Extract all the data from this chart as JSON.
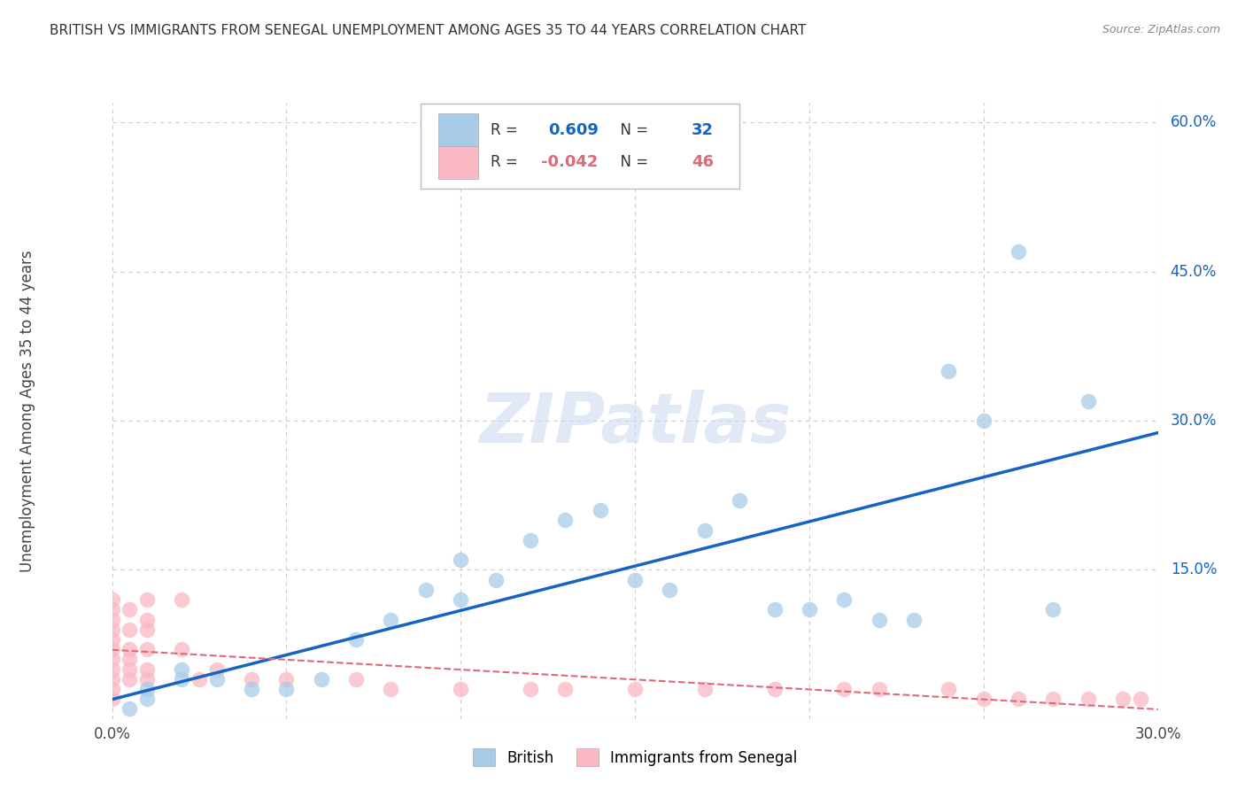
{
  "title": "BRITISH VS IMMIGRANTS FROM SENEGAL UNEMPLOYMENT AMONG AGES 35 TO 44 YEARS CORRELATION CHART",
  "source": "Source: ZipAtlas.com",
  "ylabel": "Unemployment Among Ages 35 to 44 years",
  "watermark": "ZIPatlas",
  "legend_british_R": "0.609",
  "legend_british_N": "32",
  "legend_senegal_R": "-0.042",
  "legend_senegal_N": "46",
  "xlim": [
    0.0,
    0.3
  ],
  "ylim": [
    0.0,
    0.62
  ],
  "x_ticks": [
    0.0,
    0.05,
    0.1,
    0.15,
    0.2,
    0.25,
    0.3
  ],
  "x_tick_labels": [
    "0.0%",
    "",
    "",
    "",
    "",
    "",
    "30.0%"
  ],
  "y_ticks_right": [
    0.0,
    0.15,
    0.3,
    0.45,
    0.6
  ],
  "y_tick_labels_right": [
    "",
    "15.0%",
    "30.0%",
    "45.0%",
    "60.0%"
  ],
  "british_color": "#a8cce8",
  "senegal_color": "#f9b8c4",
  "british_line_color": "#1464c0",
  "senegal_line_color": "#e06878",
  "british_x": [
    0.005,
    0.01,
    0.01,
    0.02,
    0.02,
    0.03,
    0.04,
    0.05,
    0.06,
    0.07,
    0.08,
    0.09,
    0.1,
    0.1,
    0.11,
    0.12,
    0.13,
    0.14,
    0.15,
    0.16,
    0.17,
    0.18,
    0.19,
    0.2,
    0.21,
    0.22,
    0.23,
    0.24,
    0.25,
    0.26,
    0.27,
    0.28
  ],
  "british_y": [
    0.01,
    0.02,
    0.03,
    0.04,
    0.05,
    0.04,
    0.03,
    0.03,
    0.04,
    0.08,
    0.1,
    0.13,
    0.12,
    0.16,
    0.14,
    0.18,
    0.2,
    0.21,
    0.14,
    0.13,
    0.19,
    0.22,
    0.11,
    0.11,
    0.12,
    0.1,
    0.1,
    0.35,
    0.3,
    0.47,
    0.11,
    0.32
  ],
  "senegal_x": [
    0.0,
    0.0,
    0.0,
    0.0,
    0.0,
    0.0,
    0.0,
    0.0,
    0.0,
    0.0,
    0.0,
    0.005,
    0.005,
    0.005,
    0.005,
    0.005,
    0.005,
    0.01,
    0.01,
    0.01,
    0.01,
    0.01,
    0.01,
    0.02,
    0.02,
    0.025,
    0.03,
    0.04,
    0.05,
    0.07,
    0.08,
    0.1,
    0.12,
    0.13,
    0.15,
    0.17,
    0.19,
    0.21,
    0.22,
    0.24,
    0.25,
    0.26,
    0.27,
    0.28,
    0.29,
    0.295
  ],
  "senegal_y": [
    0.02,
    0.03,
    0.04,
    0.05,
    0.06,
    0.07,
    0.08,
    0.09,
    0.1,
    0.11,
    0.12,
    0.04,
    0.05,
    0.06,
    0.07,
    0.09,
    0.11,
    0.04,
    0.05,
    0.07,
    0.09,
    0.1,
    0.12,
    0.07,
    0.12,
    0.04,
    0.05,
    0.04,
    0.04,
    0.04,
    0.03,
    0.03,
    0.03,
    0.03,
    0.03,
    0.03,
    0.03,
    0.03,
    0.03,
    0.03,
    0.02,
    0.02,
    0.02,
    0.02,
    0.02,
    0.02
  ],
  "background_color": "#ffffff",
  "grid_color": "#cccccc"
}
